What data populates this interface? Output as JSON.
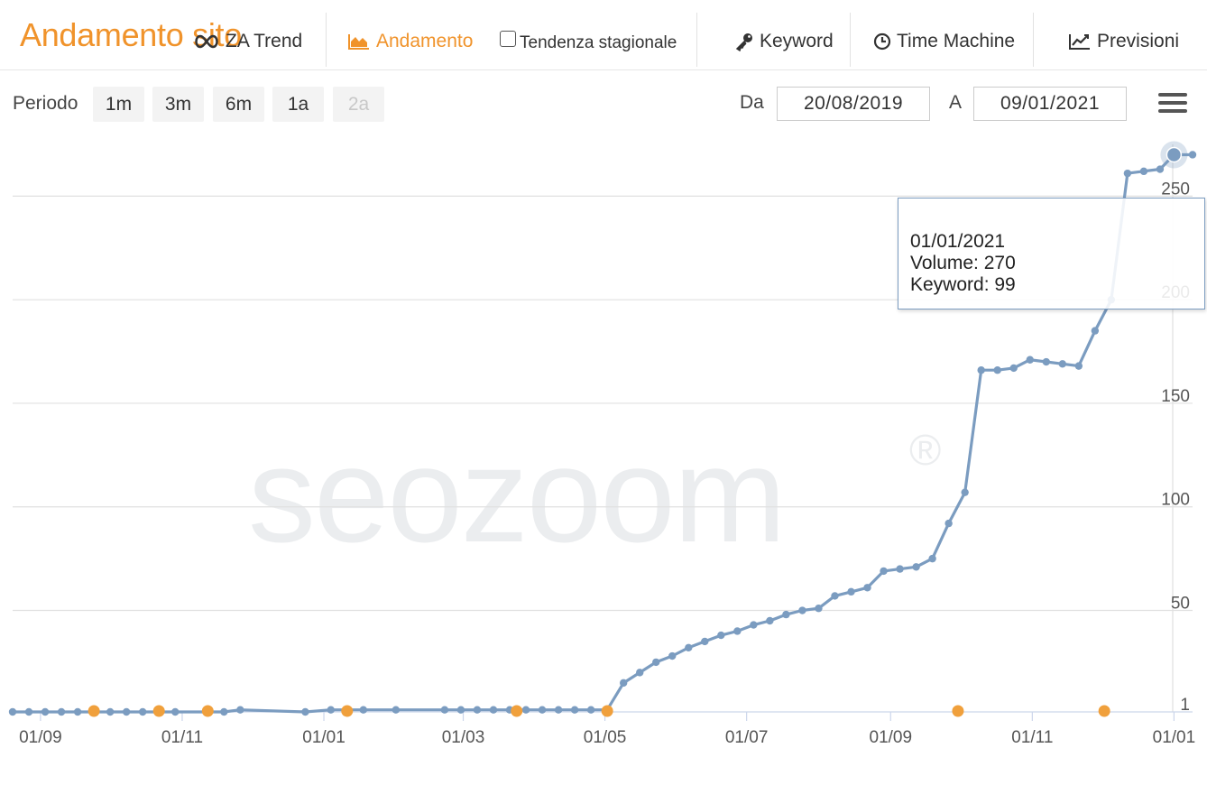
{
  "nav": {
    "title": "Andamento sito",
    "items": [
      {
        "label": "ZA Trend",
        "icon": "infinity-icon"
      },
      {
        "label": "Andamento",
        "icon": "area-chart-icon",
        "active": true
      },
      {
        "label": "Tendenza stagionale",
        "icon": "checkbox-icon",
        "checked": false
      },
      {
        "label": "Keyword",
        "icon": "key-icon"
      },
      {
        "label": "Time Machine",
        "icon": "clock-icon"
      },
      {
        "label": "Previsioni",
        "icon": "line-chart-icon"
      }
    ]
  },
  "period": {
    "label": "Periodo",
    "buttons": [
      "1m",
      "3m",
      "6m",
      "1a",
      "2a"
    ],
    "from_label": "Da",
    "from_value": "20/08/2019",
    "to_label": "A",
    "to_value": "09/01/2021"
  },
  "colors": {
    "accent": "#f0932b",
    "series": "#7b9cc0",
    "marker": "#f0a03c",
    "grid": "#e0e0e0"
  },
  "watermark": "seozoom",
  "tooltip": {
    "date": "01/01/2021",
    "volume_line": "Volume: 270",
    "keyword_line": "Keyword: 99"
  },
  "chart_data": {
    "type": "line",
    "x_tick_labels": [
      "01/09",
      "01/11",
      "01/01",
      "01/03",
      "01/05",
      "01/07",
      "01/09",
      "01/11",
      "01/01"
    ],
    "x_tick_dates": [
      "2019-09-01",
      "2019-11-01",
      "2020-01-01",
      "2020-03-01",
      "2020-05-01",
      "2020-07-01",
      "2020-09-01",
      "2020-11-01",
      "2021-01-01"
    ],
    "y_ticks": [
      1,
      50,
      100,
      150,
      200,
      250
    ],
    "ylim": [
      1,
      275
    ],
    "xlim": [
      "2019-08-20",
      "2021-01-09"
    ],
    "grid": true,
    "series": [
      {
        "values": [
          [
            "2019-08-20",
            1
          ],
          [
            "2019-08-27",
            1
          ],
          [
            "2019-09-03",
            1
          ],
          [
            "2019-09-10",
            1
          ],
          [
            "2019-09-17",
            1
          ],
          [
            "2019-10-01",
            1
          ],
          [
            "2019-10-08",
            1
          ],
          [
            "2019-10-15",
            1
          ],
          [
            "2019-10-29",
            1
          ],
          [
            "2019-11-19",
            1
          ],
          [
            "2019-11-26",
            2
          ],
          [
            "2019-12-24",
            1
          ],
          [
            "2020-01-04",
            2
          ],
          [
            "2020-01-18",
            2
          ],
          [
            "2020-02-01",
            2
          ],
          [
            "2020-02-22",
            2
          ],
          [
            "2020-02-29",
            2
          ],
          [
            "2020-03-07",
            2
          ],
          [
            "2020-03-14",
            2
          ],
          [
            "2020-03-21",
            2
          ],
          [
            "2020-03-28",
            2
          ],
          [
            "2020-04-04",
            2
          ],
          [
            "2020-04-11",
            2
          ],
          [
            "2020-04-18",
            2
          ],
          [
            "2020-04-25",
            2
          ],
          [
            "2020-05-02",
            2
          ],
          [
            "2020-05-09",
            15
          ],
          [
            "2020-05-16",
            20
          ],
          [
            "2020-05-23",
            25
          ],
          [
            "2020-05-30",
            28
          ],
          [
            "2020-06-06",
            32
          ],
          [
            "2020-06-13",
            35
          ],
          [
            "2020-06-20",
            38
          ],
          [
            "2020-06-27",
            40
          ],
          [
            "2020-07-04",
            43
          ],
          [
            "2020-07-11",
            45
          ],
          [
            "2020-07-18",
            48
          ],
          [
            "2020-07-25",
            50
          ],
          [
            "2020-08-01",
            51
          ],
          [
            "2020-08-08",
            57
          ],
          [
            "2020-08-15",
            59
          ],
          [
            "2020-08-22",
            61
          ],
          [
            "2020-08-29",
            69
          ],
          [
            "2020-09-05",
            70
          ],
          [
            "2020-09-12",
            71
          ],
          [
            "2020-09-19",
            75
          ],
          [
            "2020-09-26",
            92
          ],
          [
            "2020-10-03",
            107
          ],
          [
            "2020-10-10",
            166
          ],
          [
            "2020-10-17",
            166
          ],
          [
            "2020-10-24",
            167
          ],
          [
            "2020-10-31",
            171
          ],
          [
            "2020-11-07",
            170
          ],
          [
            "2020-11-14",
            169
          ],
          [
            "2020-11-21",
            168
          ],
          [
            "2020-11-28",
            185
          ],
          [
            "2020-12-05",
            200
          ],
          [
            "2020-12-12",
            261
          ],
          [
            "2020-12-19",
            262
          ],
          [
            "2020-12-26",
            263
          ],
          [
            "2021-01-01",
            270
          ],
          [
            "2021-01-09",
            270
          ]
        ]
      }
    ],
    "event_markers": [
      "2019-09-24",
      "2019-10-22",
      "2019-11-12",
      "2020-01-11",
      "2020-03-24",
      "2020-05-02",
      "2020-09-30",
      "2020-12-02"
    ],
    "highlighted_point": {
      "date": "2021-01-01",
      "value": 270
    }
  }
}
